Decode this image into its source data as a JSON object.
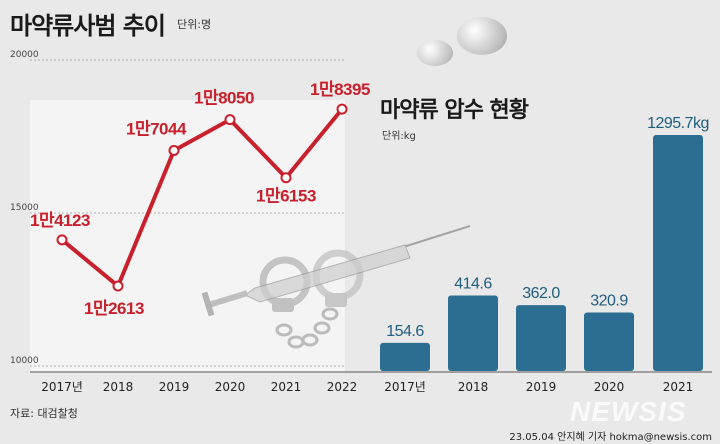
{
  "left": {
    "title": "마약류사범 추이",
    "unit": "단위:명"
  },
  "right": {
    "title": "마약류 압수 현황",
    "unit": "단위:kg"
  },
  "source": "자료: 대검찰청",
  "credit": "23.05.04 안지혜 기자 hokma@newsis.com",
  "watermark": "NEWSIS",
  "colors": {
    "line": "#c8202c",
    "bar": "#2c6e91",
    "bar_label": "#1f5d7e",
    "background": "#e9e9e9"
  },
  "chart_data": [
    {
      "type": "line",
      "title": "마약류사범 추이",
      "unit": "단위:명",
      "categories": [
        "2017년",
        "2018",
        "2019",
        "2020",
        "2021",
        "2022"
      ],
      "values": [
        14123,
        12613,
        17044,
        18050,
        16153,
        18395
      ],
      "labels": [
        "1만4123",
        "1만2613",
        "1만7044",
        "1만8050",
        "1만6153",
        "1만8395"
      ],
      "yticks": [
        20000,
        15000,
        10000
      ],
      "ylim": [
        10000,
        20000
      ],
      "grid": true
    },
    {
      "type": "bar",
      "title": "마약류 압수 현황",
      "unit": "단위:kg",
      "categories": [
        "2017년",
        "2018",
        "2019",
        "2020",
        "2021"
      ],
      "values": [
        154.6,
        414.6,
        362.0,
        320.9,
        1295.7
      ],
      "labels": [
        "154.6",
        "414.6",
        "362.0",
        "320.9",
        "1295.7kg"
      ],
      "ylim": [
        0,
        1400
      ]
    }
  ]
}
